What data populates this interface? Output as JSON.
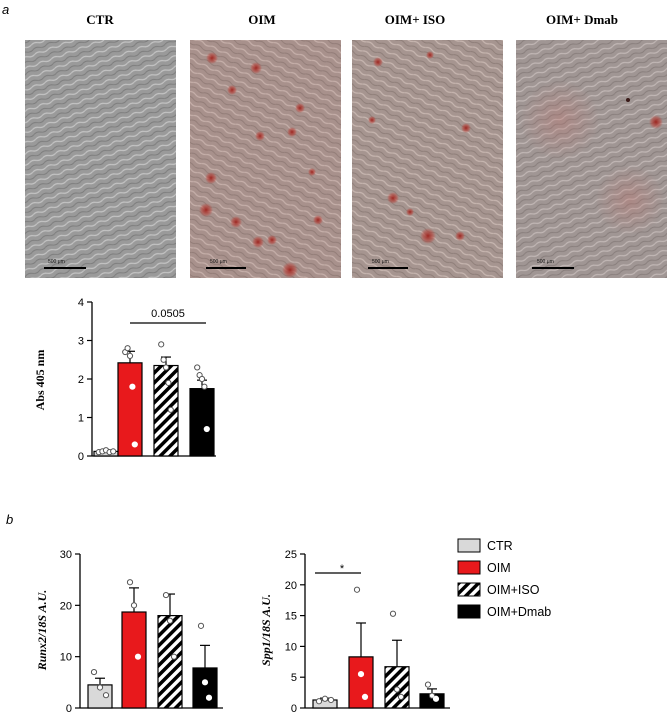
{
  "panels": {
    "a_letter": "a",
    "b_letter": "b"
  },
  "micrographs": [
    {
      "title": "CTR",
      "scale_bar": "500 μm",
      "stain": "none"
    },
    {
      "title": "OIM",
      "scale_bar": "500 μm",
      "stain": "heavy"
    },
    {
      "title": "OIM+ ISO",
      "scale_bar": "500 μm",
      "stain": "moderate"
    },
    {
      "title": "OIM+ Dmab",
      "scale_bar": "500 μm",
      "stain": "light"
    }
  ],
  "colors": {
    "ctr": "#d9d9d9",
    "oim": "#e8191c",
    "iso": "hatched",
    "dmab": "#000000"
  },
  "legend": {
    "placement": "right",
    "items": [
      {
        "label": "CTR",
        "fill": "ctr"
      },
      {
        "label": "OIM",
        "fill": "oim"
      },
      {
        "label": "OIM+ISO",
        "fill": "iso"
      },
      {
        "label": "OIM+Dmab",
        "fill": "dmab"
      }
    ]
  },
  "chart_data": [
    {
      "type": "bar",
      "ylabel": "Abs 405 nm",
      "ylim": [
        0,
        4
      ],
      "yticks": [
        "0",
        "1",
        "2",
        "3",
        "4"
      ],
      "categories": [
        "CTR",
        "OIM",
        "OIM+ISO",
        "OIM+Dmab"
      ],
      "values": [
        0.12,
        2.42,
        2.35,
        1.75
      ],
      "errors": [
        0.03,
        0.3,
        0.22,
        0.22
      ],
      "points": [
        [
          0.1,
          0.12,
          0.15,
          0.1,
          0.12
        ],
        [
          2.7,
          2.8,
          2.6,
          1.8,
          0.3
        ],
        [
          2.9,
          2.5,
          2.3,
          1.9,
          1.2
        ],
        [
          2.3,
          2.1,
          2.0,
          1.8,
          0.7
        ]
      ],
      "annotation": {
        "text": "0.0505",
        "from": 1,
        "to": 3
      }
    },
    {
      "type": "bar",
      "ylabel": "Runx2/18S A.U.",
      "ylim": [
        0,
        30
      ],
      "yticks": [
        "0",
        "10",
        "20",
        "30"
      ],
      "categories": [
        "CTR",
        "OIM",
        "OIM+ISO",
        "OIM+Dmab"
      ],
      "values": [
        4.5,
        18.7,
        18.0,
        7.8
      ],
      "errors": [
        1.3,
        4.7,
        4.2,
        4.4
      ],
      "points": [
        [
          7.0,
          4.0,
          2.5
        ],
        [
          24.5,
          20.0,
          10.0
        ],
        [
          22.0,
          17.0,
          10.0
        ],
        [
          16.0,
          5.0,
          2.0
        ]
      ]
    },
    {
      "type": "bar",
      "ylabel": "Spp1/18S A.U.",
      "ylim": [
        0,
        25
      ],
      "yticks": [
        "0",
        "5",
        "10",
        "15",
        "20",
        "25"
      ],
      "categories": [
        "CTR",
        "OIM",
        "OIM+ISO",
        "OIM+Dmab"
      ],
      "values": [
        1.3,
        8.3,
        6.7,
        2.3
      ],
      "errors": [
        0.3,
        5.5,
        4.3,
        0.8
      ],
      "points": [
        [
          1.1,
          1.5,
          1.3
        ],
        [
          19.2,
          5.5,
          1.8
        ],
        [
          15.3,
          3.0,
          1.8
        ],
        [
          3.8,
          2.0,
          1.5
        ]
      ],
      "annotation": {
        "text": "*",
        "from": 0,
        "to": 1
      }
    }
  ]
}
